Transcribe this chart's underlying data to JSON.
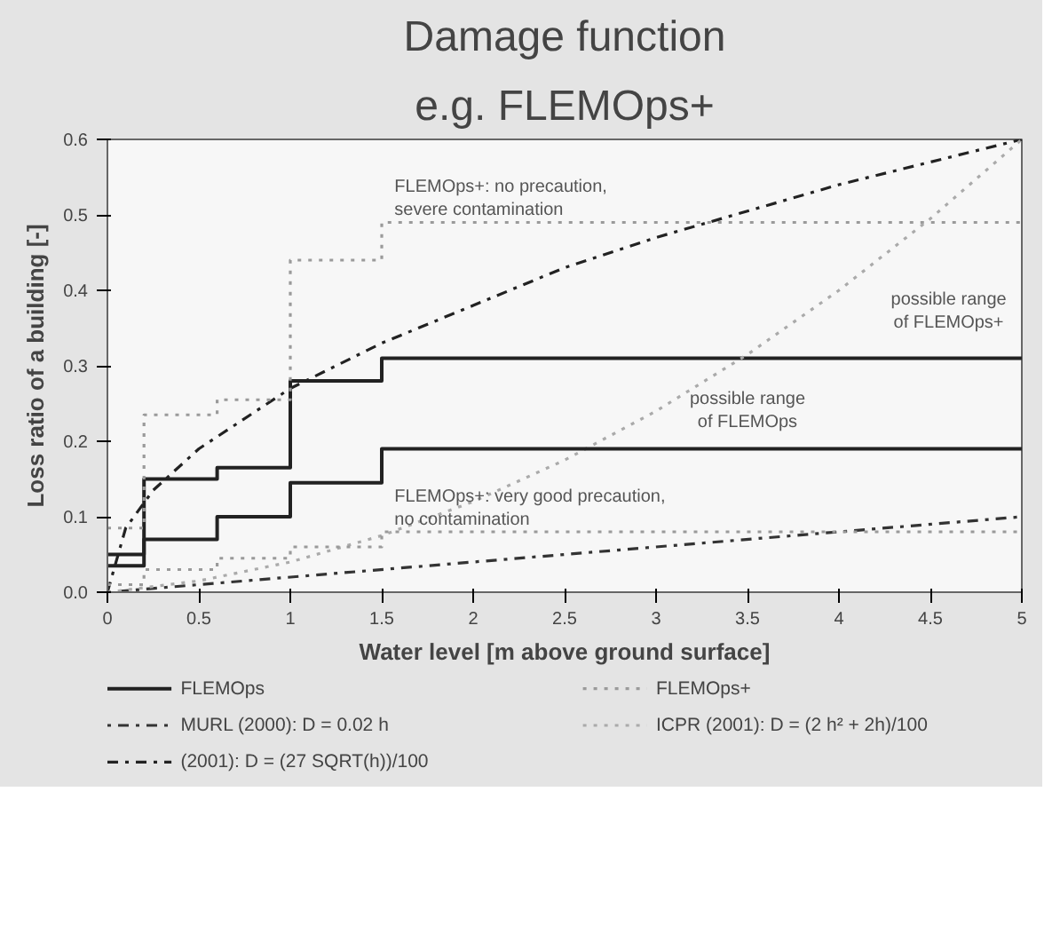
{
  "chart_data": {
    "type": "step",
    "title": "Damage function",
    "subtitle": "e.g. FLEMOps+",
    "xlabel": "Water level [m above ground surface]",
    "ylabel": "Loss ratio of a building [-]",
    "xlim": [
      0,
      5
    ],
    "ylim": [
      0,
      0.6
    ],
    "xticks": [
      0,
      0.5,
      1,
      1.5,
      2,
      2.5,
      3,
      3.5,
      4,
      4.5,
      5
    ],
    "yticks": [
      {
        "value": 0,
        "label": "0.0"
      },
      {
        "value": 0.1,
        "label": "0.1"
      },
      {
        "value": 0.2,
        "label": "0.2"
      },
      {
        "value": 0.3,
        "label": "0.3"
      },
      {
        "value": 0.4,
        "label": "0.4"
      },
      {
        "value": 0.5,
        "label": "0.5"
      },
      {
        "value": 0.6,
        "label": "0.6"
      }
    ],
    "grid": false,
    "legend": "bottom",
    "marker": "none",
    "series": [
      {
        "name": "FLEMOps",
        "color": "#222222",
        "line_style": "solid",
        "x": [
          0,
          0.2,
          0.6,
          1,
          1.5,
          5
        ],
        "values": [
          0.05,
          0.15,
          0.165,
          0.28,
          0.31,
          0.31
        ]
      },
      {
        "name": "MURL (2000): D = 0.02 h",
        "type": "line",
        "color": "#333333",
        "line_style": "dotdash",
        "x": [
          0,
          5
        ],
        "values": [
          0,
          0.1
        ]
      },
      {
        "name": "(2001): D = (27 SQRT(h))/100",
        "type": "line",
        "color": "#222222",
        "line_style": "dashdot",
        "x": [
          0,
          0.1,
          0.25,
          0.5,
          1,
          1.5,
          2,
          2.5,
          3,
          3.5,
          4,
          4.5,
          5
        ],
        "values": [
          0,
          0.085,
          0.135,
          0.19,
          0.27,
          0.33,
          0.38,
          0.43,
          0.47,
          0.505,
          0.54,
          0.57,
          0.6
        ]
      },
      {
        "name": "FLEMOps+",
        "color": "#9a9a9a",
        "line_style": "dotted",
        "x": [
          0,
          0.2,
          0.6,
          1,
          1.5,
          5
        ],
        "values": [
          0.085,
          0.235,
          0.255,
          0.44,
          0.49,
          0.49
        ]
      },
      {
        "name": "ICPR (2001): D = (2 h² + 2h)/100",
        "type": "line",
        "color": "#aaaaaa",
        "line_style": "dotted",
        "x": [
          0,
          0.5,
          1,
          1.5,
          2,
          2.5,
          3,
          3.5,
          4,
          4.5,
          5
        ],
        "values": [
          0,
          0.015,
          0.04,
          0.075,
          0.12,
          0.175,
          0.24,
          0.315,
          0.4,
          0.495,
          0.6
        ]
      },
      {
        "color": "#222222",
        "line_style": "solid",
        "x": [
          0,
          0.2,
          0.6,
          1,
          1.5,
          5
        ],
        "values": [
          0.035,
          0.07,
          0.1,
          0.145,
          0.19,
          0.19
        ]
      },
      {
        "color": "#9a9a9a",
        "line_style": "dotted",
        "x": [
          0,
          0.2,
          0.6,
          1,
          1.5,
          5
        ],
        "values": [
          0.01,
          0.03,
          0.045,
          0.06,
          0.08,
          0.08
        ]
      }
    ],
    "annotations": [
      {
        "text": "FLEMOps+: no precaution,\nsevere contamination",
        "x": 1.55,
        "y": 0.49
      },
      {
        "text": "FLEMOps+: very good precaution,\nno contamination",
        "x": 1.55,
        "y": 0.08
      },
      "possible range\nof FLEMOps+",
      "possible range\nof FLEMOps"
    ]
  }
}
